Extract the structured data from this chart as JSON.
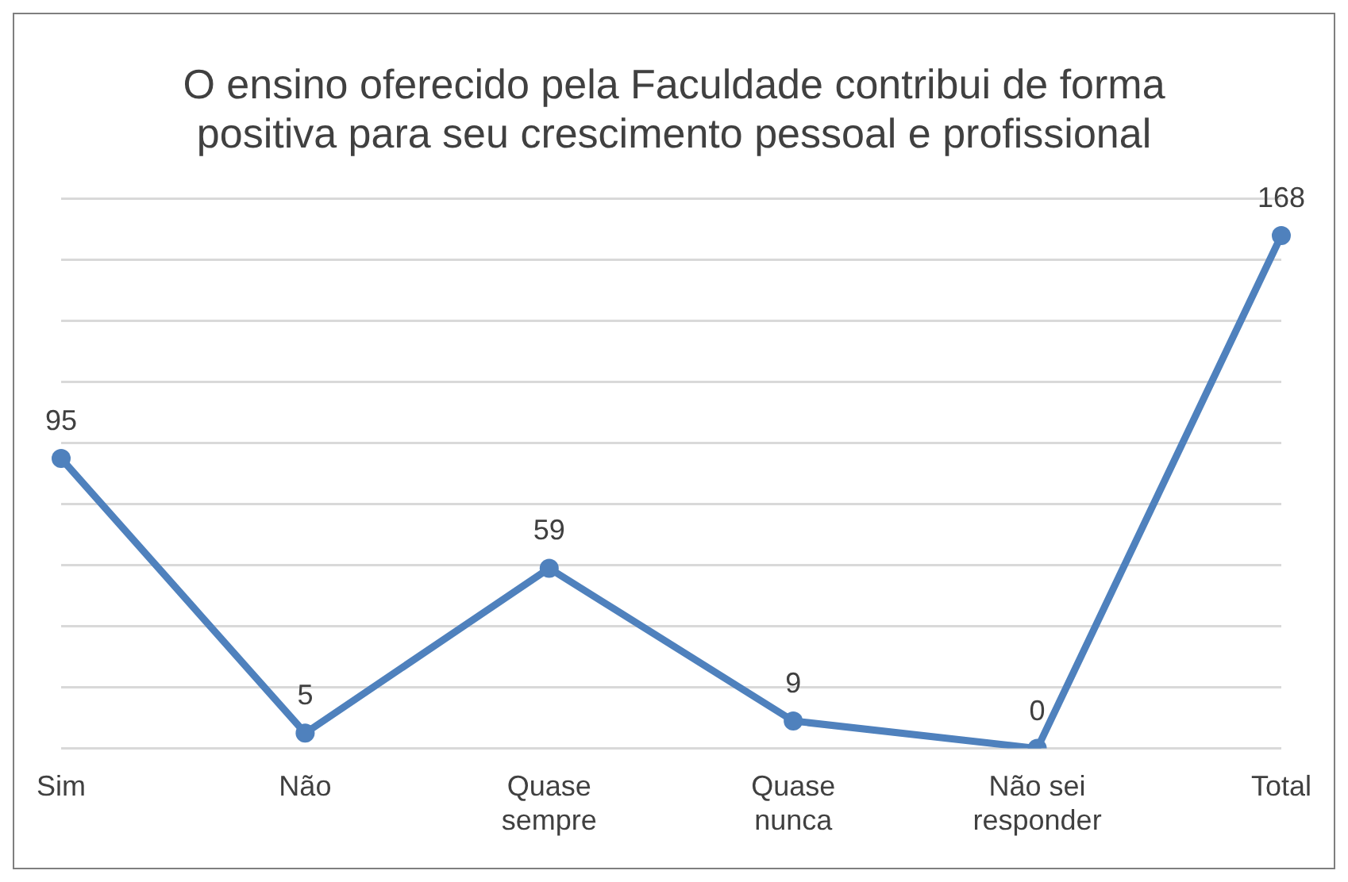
{
  "chart_data": {
    "type": "line",
    "title": "O ensino oferecido pela Faculdade contribui de forma positiva para seu crescimento pessoal e profissional",
    "categories": [
      "Sim",
      "Não",
      "Quase sempre",
      "Quase nunca",
      "Não sei responder",
      "Total"
    ],
    "values": [
      95,
      5,
      59,
      9,
      0,
      168
    ],
    "color": "#4f81bd",
    "ylim": [
      0,
      180
    ],
    "yticks": [
      {
        "value": 0,
        "label": null
      },
      {
        "value": 20,
        "label": null
      },
      {
        "value": 40,
        "label": null
      },
      {
        "value": 60,
        "label": null
      },
      {
        "value": 80,
        "label": null
      },
      {
        "value": 100,
        "label": null
      },
      {
        "value": 120,
        "label": null
      },
      {
        "value": 140,
        "label": null
      },
      {
        "value": 160,
        "label": null
      },
      {
        "value": 180,
        "label": null
      }
    ],
    "grid": "y",
    "tick_labels": "x",
    "data_labels": true,
    "marker": "circle",
    "line_style": "solid",
    "legend": false
  }
}
